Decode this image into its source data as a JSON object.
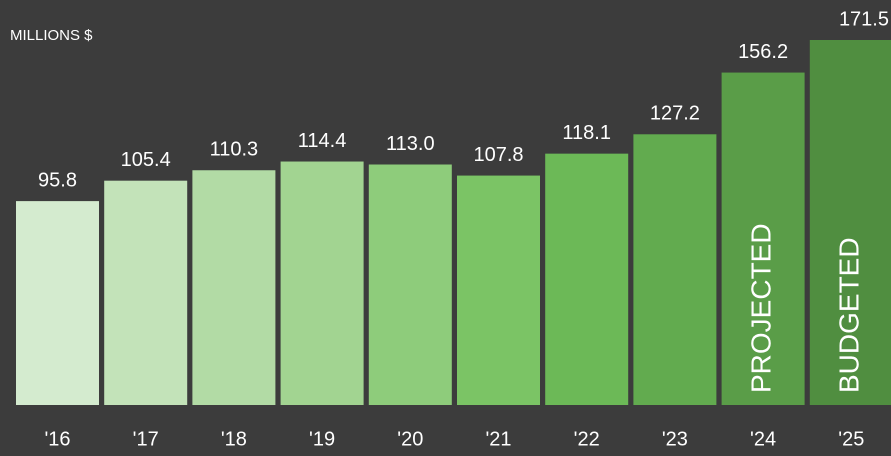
{
  "chart_data": {
    "type": "bar",
    "y_label": "MILLIONS $",
    "categories": [
      "'16",
      "'17",
      "'18",
      "'19",
      "'20",
      "'21",
      "'22",
      "'23",
      "'24",
      "'25"
    ],
    "values": [
      95.8,
      105.4,
      110.3,
      114.4,
      113.0,
      107.8,
      118.1,
      127.2,
      156.2,
      171.5
    ],
    "value_labels": [
      "95.8",
      "105.4",
      "110.3",
      "114.4",
      "113.0",
      "107.8",
      "118.1",
      "127.2",
      "156.2",
      "171.5"
    ],
    "colors": [
      "#d4ebcf",
      "#c3e3b9",
      "#b2dba5",
      "#a2d491",
      "#8ecc7b",
      "#7bc465",
      "#6cb957",
      "#62ab4f",
      "#5a9d48",
      "#508e40"
    ],
    "bar_labels": [
      null,
      null,
      null,
      null,
      null,
      null,
      null,
      null,
      "PROJECTED",
      "BUDGETED"
    ],
    "ylim": [
      0,
      171.5
    ]
  }
}
